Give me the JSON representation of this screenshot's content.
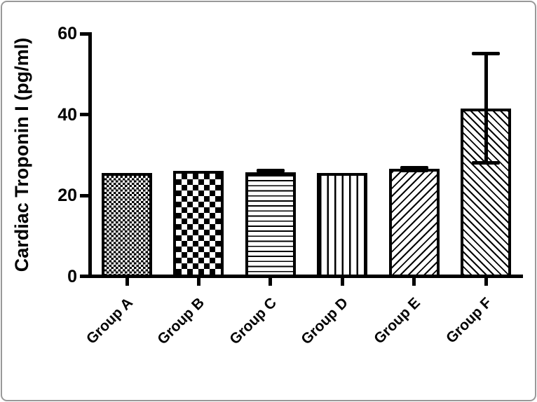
{
  "figure": {
    "frame_color": "#999999",
    "background_color": "#ffffff",
    "ink_color": "#000000"
  },
  "chart_data": {
    "type": "bar",
    "title": "",
    "xlabel": "",
    "ylabel": "Cardiac Troponin I (pg/ml)",
    "ylim": [
      0,
      60
    ],
    "yticks": [
      0,
      20,
      40,
      60
    ],
    "grid": false,
    "legend": "none",
    "categories": [
      "Group A",
      "Group B",
      "Group C",
      "Group D",
      "Group E",
      "Group F"
    ],
    "values": [
      25.6,
      26.1,
      25.8,
      25.5,
      26.5,
      41.5
    ],
    "errors_sd": [
      0,
      0,
      0.4,
      0,
      0.4,
      13.5
    ],
    "bar_patterns": [
      "fine-checkerboard",
      "coarse-checkerboard",
      "horizontal-lines",
      "vertical-lines",
      "diagonal-hatch-up",
      "diagonal-hatch-down"
    ],
    "bar_fill": "#ffffff",
    "bar_outline": "#000000"
  }
}
